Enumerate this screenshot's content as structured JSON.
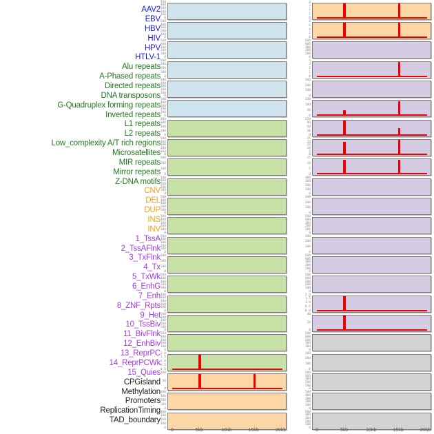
{
  "chart_data": {
    "type": "bar",
    "title": "",
    "description": "44 mini histogram tracks showing feature density across a 20kb window centered on integration sites; red spikes at 5kb and 15kb. Tracks are laid out in two panel columns of 22 rows (left column = first 22 labels, right column = last 22 labels).",
    "x_axis": {
      "tick_labels": [
        "0",
        "5kb",
        "10kb",
        "15kb",
        "20kb"
      ],
      "tick_kb": [
        0,
        5,
        10,
        15,
        20
      ],
      "range_kb": [
        0,
        20
      ]
    },
    "layout": {
      "columns": 2,
      "rows_per_column": 22,
      "grid": false,
      "legend": "none"
    },
    "colors": {
      "label": {
        "virus": "#1a1ad6",
        "repeat": "#237a23",
        "sv": "#efa31b",
        "chromatin": "#a43ae3",
        "annotation": "#1c1c1c"
      },
      "panel": {
        "virus": "#cfe3ed",
        "repeat": "#c7e0a5",
        "sv": "#fcd6a4",
        "chromatin": "#d5cce4",
        "annotation": "#d3d3d3"
      },
      "spike_red": "#ee0000",
      "panel_border": "#7c7c7c",
      "tick_text": "#8e8e8e",
      "axis_text": "#5a5a5a"
    },
    "features": [
      {
        "name": "AAV2",
        "group": "virus",
        "yticks": [
          "500",
          "400",
          "300",
          "200",
          "100",
          "0"
        ],
        "spikes": [],
        "baseline": false
      },
      {
        "name": "EBV",
        "group": "virus",
        "yticks": [
          "500",
          "400",
          "300",
          "200",
          "100",
          "0"
        ],
        "spikes": [],
        "baseline": false
      },
      {
        "name": "HBV",
        "group": "virus",
        "yticks": [
          "500",
          "400",
          "300",
          "200",
          "100",
          "0"
        ],
        "spikes": [],
        "baseline": false
      },
      {
        "name": "HIV",
        "group": "virus",
        "yticks": [
          "400",
          "300",
          "200",
          "100",
          "0"
        ],
        "spikes": [],
        "baseline": false
      },
      {
        "name": "HPV",
        "group": "virus",
        "yticks": [
          "500",
          "400",
          "300",
          "200",
          "100",
          "0"
        ],
        "spikes": [],
        "baseline": false
      },
      {
        "name": "HTLV-1",
        "group": "virus",
        "yticks": [
          "500",
          "400",
          "300",
          "200",
          "100",
          "0"
        ],
        "spikes": [],
        "baseline": false
      },
      {
        "name": "Alu repeats",
        "group": "repeat",
        "yticks": [
          "400",
          "300",
          "200",
          "100",
          "0"
        ],
        "spikes": [],
        "baseline": false
      },
      {
        "name": "A-Phased repeats",
        "group": "repeat",
        "yticks": [
          "500",
          "400",
          "300",
          "200",
          "100",
          "0"
        ],
        "spikes": [],
        "baseline": false
      },
      {
        "name": "Directed repeats",
        "group": "repeat",
        "yticks": [
          "300",
          "200",
          "100",
          "0"
        ],
        "spikes": [],
        "baseline": false
      },
      {
        "name": "DNA transposons",
        "group": "repeat",
        "yticks": [
          "500",
          "400",
          "300",
          "200",
          "100",
          "0"
        ],
        "spikes": [],
        "baseline": false
      },
      {
        "name": "G-Quadruplex forming repeats",
        "group": "repeat",
        "yticks": [
          "500",
          "400",
          "300",
          "200",
          "100",
          "0"
        ],
        "spikes": [],
        "baseline": false
      },
      {
        "name": "Inverted repeats",
        "group": "repeat",
        "yticks": [
          "500",
          "400",
          "300",
          "200",
          "100",
          "0"
        ],
        "spikes": [],
        "baseline": false
      },
      {
        "name": "L1 repeats",
        "group": "repeat",
        "yticks": [
          "500",
          "400",
          "300",
          "200",
          "100",
          "0"
        ],
        "spikes": [],
        "baseline": false
      },
      {
        "name": "L2 repeats",
        "group": "repeat",
        "yticks": [
          "300",
          "200",
          "100",
          "0"
        ],
        "spikes": [],
        "baseline": false
      },
      {
        "name": "Low_complexity A/T rich regions",
        "group": "repeat",
        "yticks": [
          "500",
          "400",
          "300",
          "200",
          "100",
          "0"
        ],
        "spikes": [],
        "baseline": false
      },
      {
        "name": "Microsatellites",
        "group": "repeat",
        "yticks": [
          "500",
          "400",
          "300",
          "200",
          "100",
          "0"
        ],
        "spikes": [],
        "baseline": false
      },
      {
        "name": "MIR repeats",
        "group": "repeat",
        "yticks": [
          "500",
          "400",
          "300",
          "200",
          "100",
          "0"
        ],
        "spikes": [],
        "baseline": false
      },
      {
        "name": "Mirror repeats",
        "group": "repeat",
        "yticks": [
          "500",
          "400",
          "300",
          "200",
          "100",
          "0"
        ],
        "spikes": [],
        "baseline": false
      },
      {
        "name": "Z-DNA motifs",
        "group": "repeat",
        "yticks": [
          "2.0",
          "1.5",
          "1.0",
          "0.5",
          "0.0"
        ],
        "spikes": [
          {
            "kb": 5,
            "frac": 1.0
          }
        ],
        "baseline": true
      },
      {
        "name": "CNV",
        "group": "sv",
        "yticks": [
          "100",
          "50",
          "0"
        ],
        "spikes": [
          {
            "kb": 5,
            "frac": 1.0
          },
          {
            "kb": 15,
            "frac": 1.0
          }
        ],
        "baseline": true
      },
      {
        "name": "DEL",
        "group": "sv",
        "yticks": [
          "400",
          "300",
          "200",
          "100",
          "0"
        ],
        "spikes": [],
        "baseline": false
      },
      {
        "name": "DUP",
        "group": "sv",
        "yticks": [
          "400",
          "300",
          "200",
          "100",
          "0"
        ],
        "spikes": [],
        "baseline": false
      },
      {
        "name": "INS",
        "group": "sv",
        "yticks": [
          "4",
          "3",
          "2",
          "1",
          "0"
        ],
        "spikes": [
          {
            "kb": 5,
            "frac": 1.0
          },
          {
            "kb": 15,
            "frac": 1.0
          }
        ],
        "baseline": true
      },
      {
        "name": "INV",
        "group": "sv",
        "yticks": [
          "8",
          "6",
          "4",
          "2",
          "0"
        ],
        "spikes": [
          {
            "kb": 5,
            "frac": 1.0
          },
          {
            "kb": 15,
            "frac": 1.0
          }
        ],
        "baseline": true
      },
      {
        "name": "1_TssA",
        "group": "chromatin",
        "yticks": [
          "500",
          "400",
          "300",
          "200",
          "100",
          "0"
        ],
        "spikes": [],
        "baseline": false
      },
      {
        "name": "2_TssAFlnk",
        "group": "chromatin",
        "yticks": [
          "4",
          "3",
          "2",
          "1",
          "0"
        ],
        "spikes": [
          {
            "kb": 15,
            "frac": 1.0
          }
        ],
        "baseline": true
      },
      {
        "name": "3_TxFlnk",
        "group": "chromatin",
        "yticks": [
          "300",
          "200",
          "100",
          "0"
        ],
        "spikes": [],
        "baseline": false
      },
      {
        "name": "4_Tx",
        "group": "chromatin",
        "yticks": [
          "150",
          "100",
          "50",
          "0"
        ],
        "spikes": [
          {
            "kb": 5,
            "frac": 0.37
          },
          {
            "kb": 15,
            "frac": 1.0
          }
        ],
        "baseline": true
      },
      {
        "name": "5_TxWk",
        "group": "chromatin",
        "yticks": [
          "120",
          "90",
          "60",
          "30",
          "0"
        ],
        "spikes": [
          {
            "kb": 5,
            "frac": 1.0
          },
          {
            "kb": 15,
            "frac": 0.5
          }
        ],
        "baseline": true
      },
      {
        "name": "6_EnhG",
        "group": "chromatin",
        "yticks": [
          "25",
          "20",
          "15",
          "10",
          "5",
          "0"
        ],
        "spikes": [
          {
            "kb": 5,
            "frac": 0.88
          },
          {
            "kb": 15,
            "frac": 1.0
          }
        ],
        "baseline": true
      },
      {
        "name": "7_Enh",
        "group": "chromatin",
        "yticks": [
          "15",
          "10",
          "5",
          "0"
        ],
        "spikes": [
          {
            "kb": 5,
            "frac": 1.0
          },
          {
            "kb": 15,
            "frac": 1.0
          }
        ],
        "baseline": true
      },
      {
        "name": "8_ZNF_Rpts",
        "group": "chromatin",
        "yticks": [
          "400",
          "300",
          "200",
          "100",
          "0"
        ],
        "spikes": [],
        "baseline": false
      },
      {
        "name": "9_Het",
        "group": "chromatin",
        "yticks": [
          "300",
          "200",
          "100",
          "0"
        ],
        "spikes": [],
        "baseline": false
      },
      {
        "name": "10_TssBiv",
        "group": "chromatin",
        "yticks": [
          "500",
          "400",
          "300",
          "200",
          "100",
          "0"
        ],
        "spikes": [],
        "baseline": false
      },
      {
        "name": "11_BivFlnk",
        "group": "chromatin",
        "yticks": [
          "300",
          "200",
          "100",
          "0"
        ],
        "spikes": [],
        "baseline": false
      },
      {
        "name": "12_EnhBiv",
        "group": "chromatin",
        "yticks": [
          "500",
          "400",
          "300",
          "200",
          "100",
          "0"
        ],
        "spikes": [],
        "baseline": false
      },
      {
        "name": "13_ReprPC",
        "group": "chromatin",
        "yticks": [
          "500",
          "400",
          "300",
          "200",
          "100",
          "0"
        ],
        "spikes": [],
        "baseline": false
      },
      {
        "name": "14_ReprPCWk",
        "group": "chromatin",
        "yticks": [
          "2.0",
          "1.5",
          "1.0",
          "0.5",
          "0.0"
        ],
        "spikes": [
          {
            "kb": 5,
            "frac": 1.0
          }
        ],
        "baseline": true
      },
      {
        "name": "15_Quies",
        "group": "chromatin",
        "yticks": [
          "40",
          "20",
          "0"
        ],
        "spikes": [
          {
            "kb": 5,
            "frac": 1.0
          },
          {
            "kb": 15,
            "frac": 0.08
          }
        ],
        "baseline": true
      },
      {
        "name": "CPGisland",
        "group": "annotation",
        "yticks": [
          "500",
          "400",
          "300",
          "200",
          "100",
          "0"
        ],
        "spikes": [],
        "baseline": false
      },
      {
        "name": "Methylation",
        "group": "annotation",
        "yticks": [
          "300",
          "200",
          "100",
          "0"
        ],
        "spikes": [],
        "baseline": false
      },
      {
        "name": "Promoters",
        "group": "annotation",
        "yticks": [
          "500",
          "400",
          "300",
          "200",
          "100",
          "0"
        ],
        "spikes": [],
        "baseline": false
      },
      {
        "name": "ReplicationTiming",
        "group": "annotation",
        "yticks": [
          "500",
          "400",
          "300",
          "200",
          "100",
          "0"
        ],
        "spikes": [],
        "baseline": false
      },
      {
        "name": "TAD_boundary",
        "group": "annotation",
        "yticks": [
          "500",
          "400",
          "300",
          "200",
          "100",
          "0"
        ],
        "spikes": [],
        "baseline": false
      }
    ]
  }
}
